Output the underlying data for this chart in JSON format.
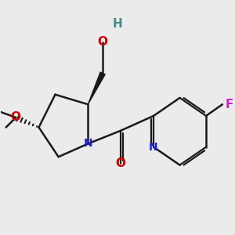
{
  "background_color": "#ebebeb",
  "figsize": [
    3.0,
    3.0
  ],
  "dpi": 100,
  "colors": {
    "bond": "#1a1a1a",
    "N": "#2222cc",
    "O": "#cc0000",
    "F": "#cc22cc",
    "H": "#4a8888"
  }
}
